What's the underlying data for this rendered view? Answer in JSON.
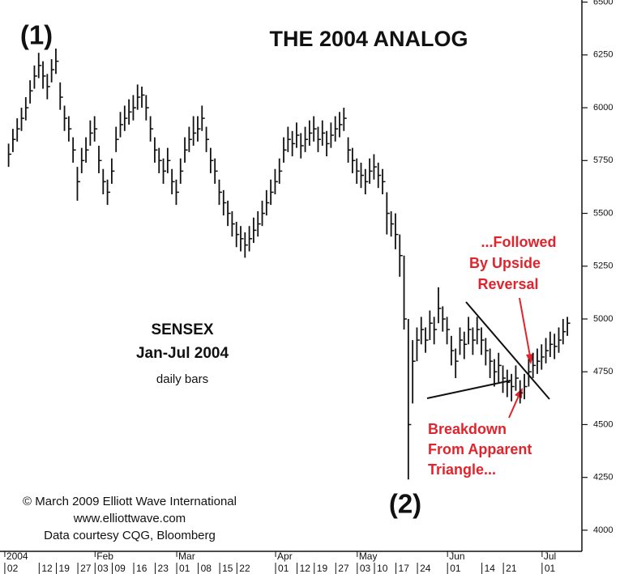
{
  "chart_data": {
    "type": "ohlc",
    "title": "THE 2004 ANALOG",
    "annotations": {
      "wave1": "(1)",
      "wave2": "(2)",
      "name": "SENSEX",
      "period": "Jan-Jul 2004",
      "freq": "daily bars",
      "reversal": [
        "...Followed",
        "By Upside",
        "Reversal"
      ],
      "breakdown": [
        "Breakdown",
        "From Apparent",
        "Triangle..."
      ],
      "credits": [
        "© March 2009 Elliott Wave International",
        "www.elliottwave.com",
        "Data courtesy CQG, Bloomberg"
      ]
    },
    "color": "#111111",
    "xlim": [
      -2,
      133
    ],
    "ylim": [
      3900,
      6510
    ],
    "yticks": [
      4000,
      4250,
      4500,
      4750,
      5000,
      5250,
      5500,
      5750,
      6000,
      6250,
      6500
    ],
    "months": [
      {
        "value": 1,
        "label": "2004"
      },
      {
        "value": 22,
        "label": "Feb"
      },
      {
        "value": 41,
        "label": "Mar"
      },
      {
        "value": 64,
        "label": "Apr"
      },
      {
        "value": 83,
        "label": "May"
      },
      {
        "value": 104,
        "label": "Jun"
      },
      {
        "value": 126,
        "label": "Jul"
      }
    ],
    "xticks": [
      {
        "value": 1,
        "label": "02"
      },
      {
        "value": 9,
        "label": "12"
      },
      {
        "value": 13,
        "label": "19"
      },
      {
        "value": 18,
        "label": "27"
      },
      {
        "value": 22,
        "label": "03"
      },
      {
        "value": 26,
        "label": "09"
      },
      {
        "value": 31,
        "label": "16"
      },
      {
        "value": 36,
        "label": "23"
      },
      {
        "value": 41,
        "label": "01"
      },
      {
        "value": 46,
        "label": "08"
      },
      {
        "value": 51,
        "label": "15"
      },
      {
        "value": 55,
        "label": "22"
      },
      {
        "value": 64,
        "label": "01"
      },
      {
        "value": 69,
        "label": "12"
      },
      {
        "value": 73,
        "label": "19"
      },
      {
        "value": 78,
        "label": "27"
      },
      {
        "value": 83,
        "label": "03"
      },
      {
        "value": 87,
        "label": "10"
      },
      {
        "value": 92,
        "label": "17"
      },
      {
        "value": 97,
        "label": "24"
      },
      {
        "value": 104,
        "label": "01"
      },
      {
        "value": 112,
        "label": "14"
      },
      {
        "value": 117,
        "label": "21"
      },
      {
        "value": 126,
        "label": "01"
      }
    ],
    "high": [
      5830,
      5900,
      5950,
      6000,
      6050,
      6130,
      6200,
      6260,
      6220,
      6160,
      6230,
      6280,
      6120,
      6010,
      5960,
      5860,
      5720,
      5810,
      5860,
      5940,
      5960,
      5820,
      5710,
      5660,
      5760,
      5910,
      5980,
      6010,
      6040,
      6060,
      6110,
      6100,
      6060,
      5960,
      5860,
      5810,
      5760,
      5810,
      5710,
      5660,
      5760,
      5860,
      5910,
      5960,
      5960,
      6010,
      5910,
      5810,
      5760,
      5660,
      5610,
      5560,
      5510,
      5460,
      5440,
      5410,
      5440,
      5480,
      5510,
      5560,
      5610,
      5660,
      5710,
      5760,
      5860,
      5910,
      5890,
      5930,
      5880,
      5910,
      5940,
      5960,
      5910,
      5940,
      5890,
      5930,
      5960,
      5980,
      6000,
      5860,
      5810,
      5760,
      5740,
      5710,
      5760,
      5780,
      5740,
      5710,
      5600,
      5510,
      5500,
      5400,
      5300,
      5000,
      4900,
      4960,
      5010,
      4960,
      5040,
      5010,
      5150,
      5060,
      5010,
      4920,
      4860,
      4960,
      4940,
      5010,
      4960,
      5010,
      4960,
      4910,
      4860,
      4810,
      4840,
      4780,
      4760,
      4740,
      4780,
      4710,
      4740,
      4810,
      4840,
      4860,
      4880,
      4910,
      4940,
      4930,
      4960,
      5000,
      5010
    ],
    "low": [
      5720,
      5790,
      5840,
      5890,
      5940,
      6020,
      6090,
      6140,
      6090,
      6040,
      6120,
      6160,
      5990,
      5890,
      5840,
      5740,
      5560,
      5690,
      5740,
      5820,
      5840,
      5690,
      5590,
      5540,
      5640,
      5790,
      5860,
      5890,
      5920,
      5940,
      5990,
      6000,
      5940,
      5840,
      5740,
      5690,
      5640,
      5690,
      5590,
      5540,
      5640,
      5740,
      5790,
      5820,
      5840,
      5890,
      5790,
      5690,
      5640,
      5540,
      5490,
      5440,
      5390,
      5340,
      5320,
      5290,
      5320,
      5360,
      5390,
      5440,
      5490,
      5540,
      5590,
      5640,
      5740,
      5790,
      5770,
      5810,
      5760,
      5790,
      5820,
      5840,
      5790,
      5820,
      5770,
      5810,
      5840,
      5860,
      5890,
      5740,
      5690,
      5640,
      5620,
      5590,
      5640,
      5660,
      5620,
      5590,
      5400,
      5390,
      5330,
      5200,
      4950,
      4240,
      4600,
      4800,
      4880,
      4840,
      4900,
      4880,
      4980,
      4940,
      4880,
      4780,
      4720,
      4830,
      4810,
      4880,
      4830,
      4880,
      4830,
      4780,
      4720,
      4680,
      4700,
      4650,
      4630,
      4610,
      4660,
      4600,
      4620,
      4680,
      4720,
      4740,
      4760,
      4790,
      4820,
      4810,
      4840,
      4880,
      4920
    ],
    "close": [
      5780,
      5850,
      5900,
      5950,
      6000,
      6080,
      6150,
      6200,
      6150,
      6100,
      6180,
      6220,
      6050,
      5950,
      5900,
      5800,
      5650,
      5750,
      5800,
      5880,
      5900,
      5750,
      5650,
      5600,
      5700,
      5850,
      5920,
      5950,
      5980,
      6000,
      6050,
      6060,
      6000,
      5900,
      5800,
      5750,
      5700,
      5750,
      5650,
      5600,
      5700,
      5800,
      5850,
      5880,
      5900,
      5950,
      5850,
      5750,
      5700,
      5600,
      5550,
      5500,
      5450,
      5400,
      5380,
      5350,
      5380,
      5420,
      5450,
      5500,
      5550,
      5600,
      5650,
      5700,
      5800,
      5850,
      5830,
      5870,
      5820,
      5850,
      5880,
      5900,
      5850,
      5880,
      5830,
      5870,
      5900,
      5920,
      5950,
      5800,
      5750,
      5700,
      5680,
      5650,
      5700,
      5720,
      5680,
      5650,
      5500,
      5450,
      5400,
      5300,
      5000,
      4500,
      4800,
      4900,
      4950,
      4900,
      4980,
      4950,
      5050,
      5000,
      4950,
      4850,
      4800,
      4900,
      4880,
      4950,
      4900,
      4950,
      4900,
      4850,
      4800,
      4750,
      4780,
      4720,
      4700,
      4680,
      4720,
      4650,
      4680,
      4750,
      4780,
      4800,
      4820,
      4850,
      4880,
      4870,
      4900,
      4940,
      4980
    ]
  }
}
